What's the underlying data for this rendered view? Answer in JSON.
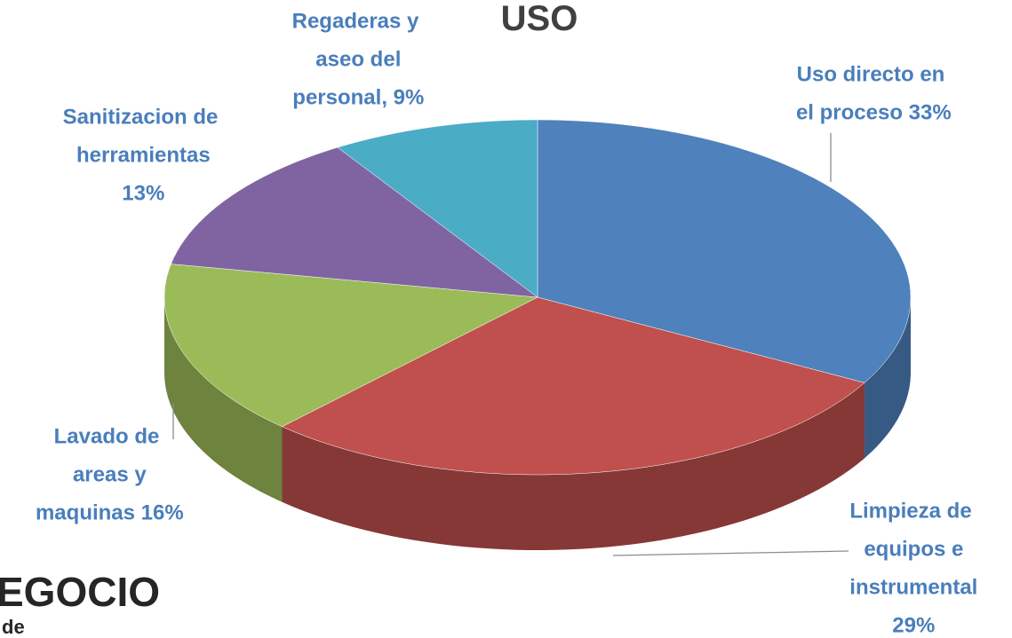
{
  "chart_data": {
    "type": "pie",
    "title": "USO",
    "values": [
      33,
      29,
      16,
      13,
      9
    ],
    "value_labels": [
      "Uso directo en el proceso 33%",
      "Limpieza de equipos e instrumental 29%",
      "Lavado de areas y maquinas 16%",
      "Sanitizacion de herramientas 13%",
      "Regaderas y aseo del personal, 9%"
    ],
    "colors": [
      "#4f81bd",
      "#c0504d",
      "#9bbb59",
      "#8064a2",
      "#4bacc6"
    ],
    "start_angle": 0,
    "direction": "clockwise",
    "3d": true
  },
  "partial_texts": [
    "EGOCIO",
    "de"
  ]
}
